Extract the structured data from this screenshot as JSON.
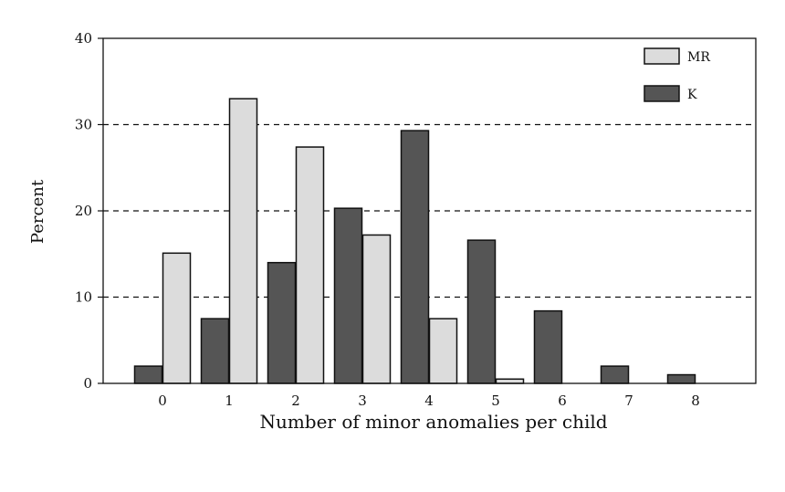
{
  "chart_data": {
    "type": "bar",
    "categories": [
      "0",
      "1",
      "2",
      "3",
      "4",
      "5",
      "6",
      "7",
      "8"
    ],
    "series": [
      {
        "name": "K",
        "color": "#555555",
        "values": [
          2.0,
          7.5,
          14.0,
          20.3,
          29.3,
          16.6,
          8.4,
          2.0,
          1.0
        ]
      },
      {
        "name": "MR",
        "color": "#dcdcdc",
        "values": [
          15.1,
          33.0,
          27.4,
          17.2,
          7.5,
          0.5,
          0,
          0,
          0
        ]
      }
    ],
    "yticks": [
      "0",
      "10",
      "20",
      "30",
      "40"
    ],
    "ylim": [
      0,
      40
    ],
    "xlabel": "Number of minor anomalies per child",
    "ylabel": "Percent",
    "gridlines": "dashed at 10, 20, 30",
    "legend_position": "top-right",
    "legend_order": [
      "MR",
      "K"
    ]
  }
}
